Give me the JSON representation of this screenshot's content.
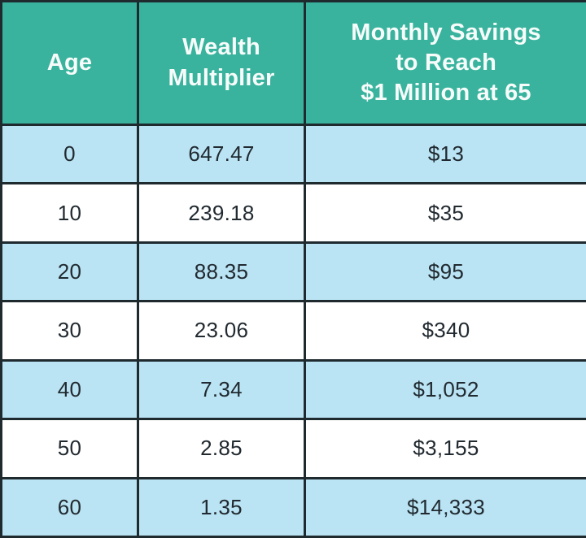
{
  "colors": {
    "header_bg": "#39B39E",
    "row_alt_bg": "#BAE3F3",
    "row_bg": "#FFFFFF",
    "border": "#1F2A2F",
    "header_text": "#F7FCFA",
    "body_text": "#212A30"
  },
  "table": {
    "headers": [
      "Age",
      "Wealth\nMultiplier",
      "Monthly Savings\nto Reach\n$1 Million at 65"
    ],
    "rows": [
      [
        "0",
        "647.47",
        "$13"
      ],
      [
        "10",
        "239.18",
        "$35"
      ],
      [
        "20",
        "88.35",
        "$95"
      ],
      [
        "30",
        "23.06",
        "$340"
      ],
      [
        "40",
        "7.34",
        "$1,052"
      ],
      [
        "50",
        "2.85",
        "$3,155"
      ],
      [
        "60",
        "1.35",
        "$14,333"
      ]
    ]
  },
  "chart_data": {
    "type": "table",
    "columns": [
      "Age",
      "Wealth Multiplier",
      "Monthly Savings to Reach $1 Million at 65"
    ],
    "rows": [
      [
        0,
        647.47,
        "$13"
      ],
      [
        10,
        239.18,
        "$35"
      ],
      [
        20,
        88.35,
        "$95"
      ],
      [
        30,
        23.06,
        "$340"
      ],
      [
        40,
        7.34,
        "$1,052"
      ],
      [
        50,
        2.85,
        "$3,155"
      ],
      [
        60,
        1.35,
        "$14,333"
      ]
    ]
  }
}
